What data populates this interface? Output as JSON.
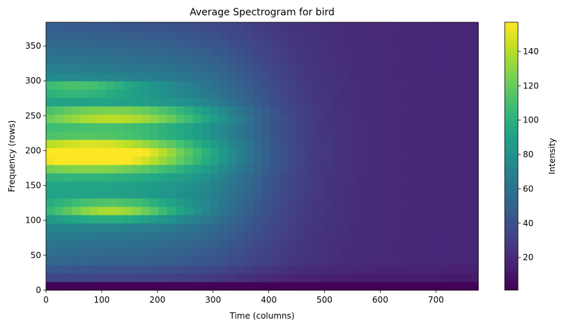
{
  "chart_data": {
    "type": "heatmap",
    "title": "Average Spectrogram for bird",
    "xlabel": "Time (columns)",
    "ylabel": "Frequency (rows)",
    "xlim": [
      0,
      776
    ],
    "ylim": [
      0,
      384
    ],
    "x_ticks": [
      0,
      100,
      200,
      300,
      400,
      500,
      600,
      700
    ],
    "y_ticks": [
      0,
      50,
      100,
      150,
      200,
      250,
      300,
      350
    ],
    "colormap": "viridis",
    "colorbar": {
      "label": "Intensity",
      "range": [
        1,
        157
      ],
      "ticks": [
        20,
        40,
        60,
        80,
        100,
        120,
        140
      ]
    },
    "hotspots": [
      {
        "freq_center": 195,
        "freq_width": 22,
        "time_center": 90,
        "time_width": 170,
        "intensity": 157
      },
      {
        "freq_center": 250,
        "freq_width": 14,
        "time_center": 130,
        "time_width": 160,
        "intensity": 130
      },
      {
        "freq_center": 290,
        "freq_width": 10,
        "time_center": 60,
        "time_width": 120,
        "intensity": 118
      },
      {
        "freq_center": 115,
        "freq_width": 14,
        "time_center": 120,
        "time_width": 120,
        "intensity": 135
      }
    ]
  }
}
